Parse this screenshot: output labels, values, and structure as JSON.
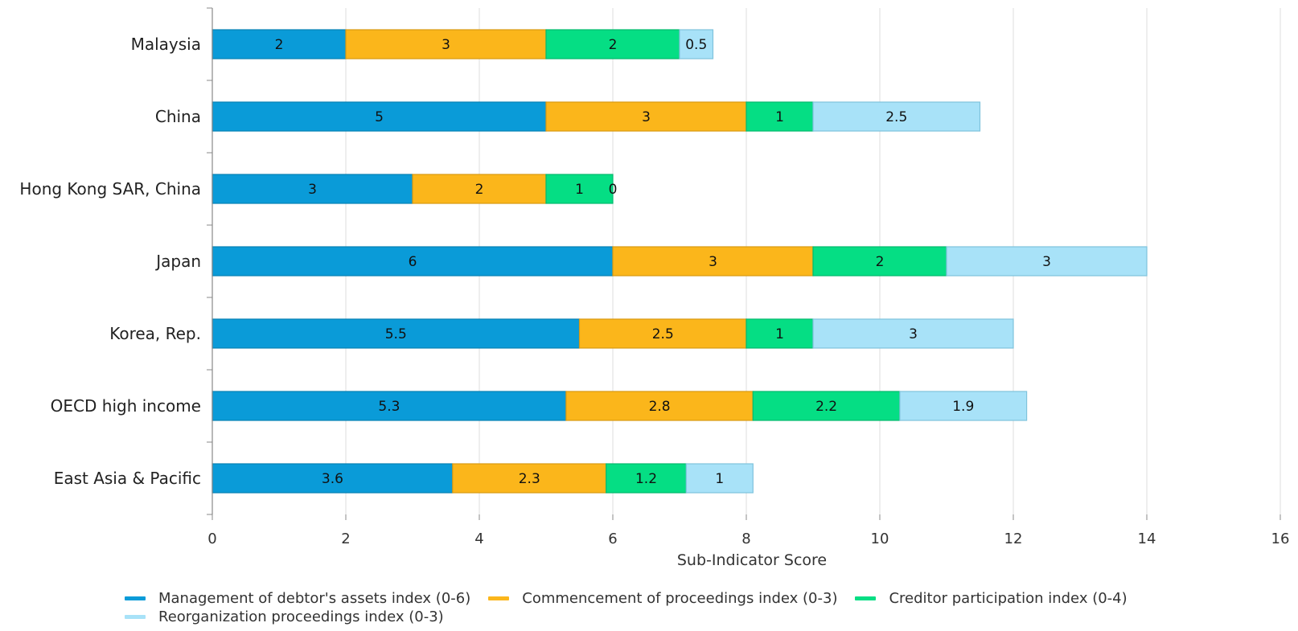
{
  "chart_data": {
    "type": "bar",
    "orientation": "horizontal",
    "stacked": true,
    "title": "",
    "xlabel": "Sub-Indicator Score",
    "ylabel": "",
    "xlim": [
      0,
      16
    ],
    "x_ticks": [
      "0",
      "2",
      "4",
      "6",
      "8",
      "10",
      "12",
      "14",
      "16"
    ],
    "grid": "vertical",
    "legend_position": "bottom-left",
    "categories": [
      "Malaysia",
      "China",
      "Hong Kong SAR, China",
      "Japan",
      "Korea, Rep.",
      "OECD high income",
      "East Asia & Pacific"
    ],
    "series": [
      {
        "name": "Management of debtor's assets index (0-6)",
        "color": "#0a9bd8",
        "values": [
          2,
          5,
          3,
          6,
          5.5,
          5.3,
          3.6
        ]
      },
      {
        "name": "Commencement of proceedings index (0-3)",
        "color": "#fbb61b",
        "values": [
          3,
          3,
          2,
          3,
          2.5,
          2.8,
          2.3
        ]
      },
      {
        "name": "Creditor participation index (0-4)",
        "color": "#05de84",
        "values": [
          2,
          1,
          1,
          2,
          1,
          2.2,
          1.2
        ]
      },
      {
        "name": "Reorganization proceedings index (0-3)",
        "color": "#a8e2f8",
        "values": [
          0.5,
          2.5,
          0,
          3,
          3,
          1.9,
          1
        ]
      }
    ]
  }
}
